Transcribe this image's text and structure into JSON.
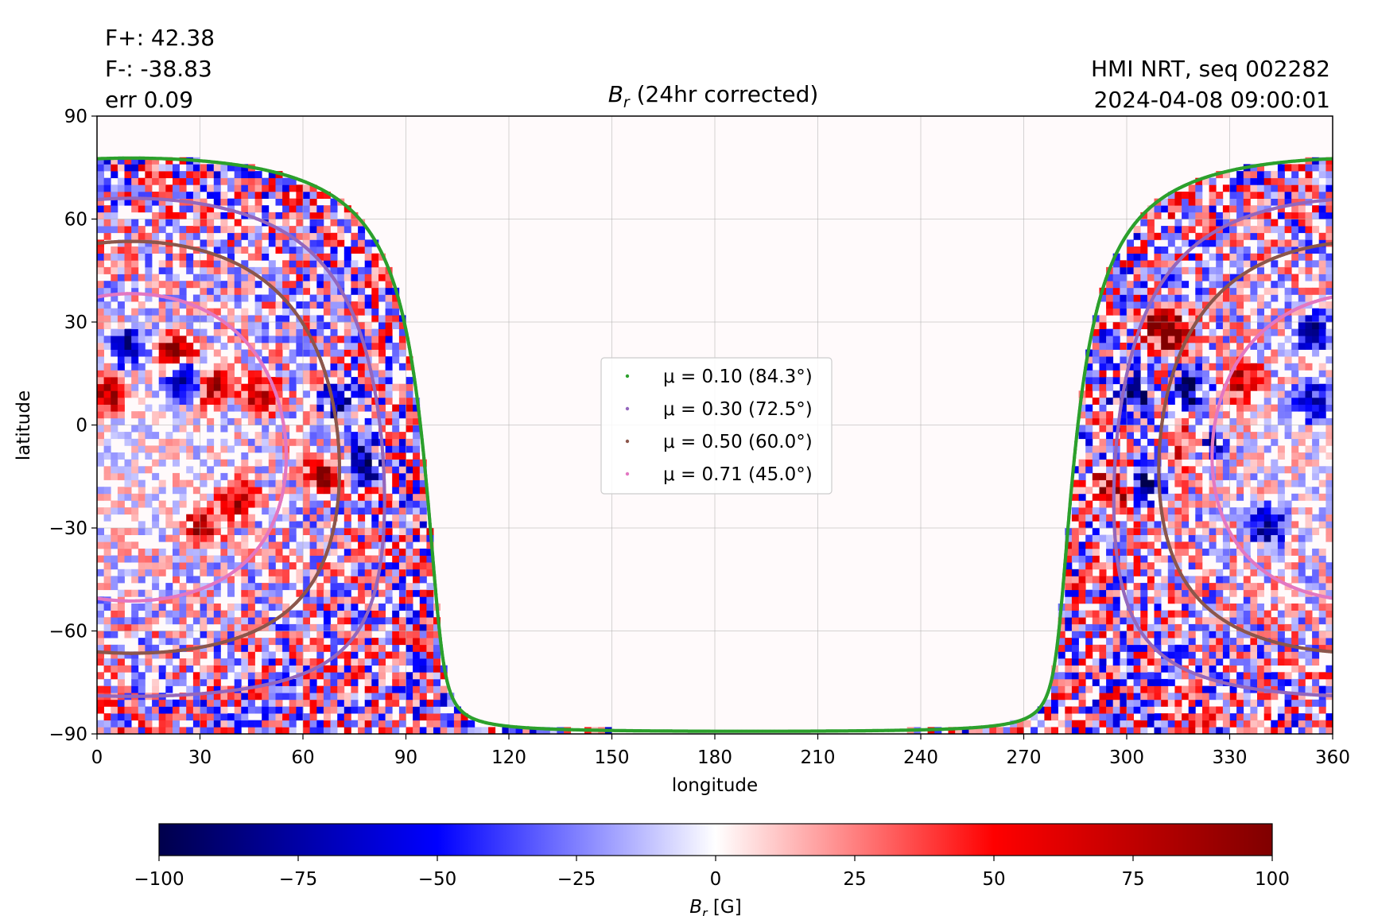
{
  "header": {
    "stats": [
      "F+: 42.38",
      "F-: -38.83",
      "err 0.09"
    ],
    "source_lines": [
      "HMI NRT, seq 002282",
      "2024-04-08 09:00:01"
    ]
  },
  "chart_data": {
    "type": "heatmap",
    "title_symbol": "B",
    "title_sub": "r",
    "title_rest": " (24hr corrected)",
    "xlabel": "longitude",
    "ylabel": "latitude",
    "xlim": [
      0,
      360
    ],
    "ylim": [
      -90,
      90
    ],
    "xticks": [
      0,
      30,
      60,
      90,
      120,
      150,
      180,
      210,
      240,
      270,
      300,
      330,
      360
    ],
    "yticks": [
      -90,
      -60,
      -30,
      0,
      30,
      60,
      90
    ],
    "xtick_labels": [
      "0",
      "30",
      "60",
      "90",
      "120",
      "150",
      "180",
      "210",
      "240",
      "270",
      "300",
      "330",
      "360"
    ],
    "ytick_labels": [
      "−90",
      "−60",
      "−30",
      "0",
      "30",
      "60",
      "90"
    ],
    "grid": true,
    "legend_position": "center",
    "contours": [
      {
        "label": "μ = 0.10 (84.3°)",
        "mu": 0.1,
        "angle_deg": 84.3,
        "color": "#2ca02c"
      },
      {
        "label": "μ = 0.30 (72.5°)",
        "mu": 0.3,
        "angle_deg": 72.5,
        "color": "#9467bd"
      },
      {
        "label": "μ = 0.50 (60.0°)",
        "mu": 0.5,
        "angle_deg": 60.0,
        "color": "#8c564b"
      },
      {
        "label": "μ = 0.71 (45.0°)",
        "mu": 0.71,
        "angle_deg": 45.0,
        "color": "#e377c2"
      }
    ],
    "disk_center": {
      "lon": 10,
      "lat": -6.5
    },
    "field_features": [
      {
        "lon": 8,
        "lat": 22,
        "polarity": "negative"
      },
      {
        "lon": 22,
        "lat": 20,
        "polarity": "positive"
      },
      {
        "lon": 25,
        "lat": 12,
        "polarity": "negative"
      },
      {
        "lon": 33,
        "lat": 10,
        "polarity": "positive"
      },
      {
        "lon": 2,
        "lat": 8,
        "polarity": "positive"
      },
      {
        "lon": 47,
        "lat": 8,
        "polarity": "positive"
      },
      {
        "lon": 70,
        "lat": 6,
        "polarity": "negative"
      },
      {
        "lon": 77,
        "lat": -12,
        "polarity": "negative"
      },
      {
        "lon": 65,
        "lat": -15,
        "polarity": "positive"
      },
      {
        "lon": 40,
        "lat": -23,
        "polarity": "positive"
      },
      {
        "lon": 30,
        "lat": -30,
        "polarity": "positive"
      },
      {
        "lon": 308,
        "lat": 28,
        "polarity": "positive"
      },
      {
        "lon": 313,
        "lat": 25,
        "polarity": "positive"
      },
      {
        "lon": 318,
        "lat": 10,
        "polarity": "negative"
      },
      {
        "lon": 300,
        "lat": 8,
        "polarity": "negative"
      },
      {
        "lon": 353,
        "lat": 6,
        "polarity": "negative"
      },
      {
        "lon": 318,
        "lat": -8,
        "polarity": "positive"
      },
      {
        "lon": 322,
        "lat": -7,
        "polarity": "negative"
      },
      {
        "lon": 295,
        "lat": -20,
        "polarity": "positive"
      },
      {
        "lon": 305,
        "lat": -18,
        "polarity": "negative"
      },
      {
        "lon": 340,
        "lat": -30,
        "polarity": "negative"
      },
      {
        "lon": 353,
        "lat": 26,
        "polarity": "negative"
      },
      {
        "lon": 333,
        "lat": 12,
        "polarity": "positive"
      }
    ],
    "colorbar": {
      "label_symbol": "B",
      "label_sub": "r",
      "label_rest": " [G]",
      "min": -100,
      "max": 100,
      "ticks": [
        -100,
        -75,
        -50,
        -25,
        0,
        25,
        50,
        75,
        100
      ],
      "tick_labels": [
        "−100",
        "−75",
        "−50",
        "−25",
        "0",
        "25",
        "50",
        "75",
        "100"
      ],
      "colormap": "seismic",
      "colors": [
        "#00004c",
        "#0000ff",
        "#ffffff",
        "#ff0000",
        "#800000"
      ]
    }
  }
}
